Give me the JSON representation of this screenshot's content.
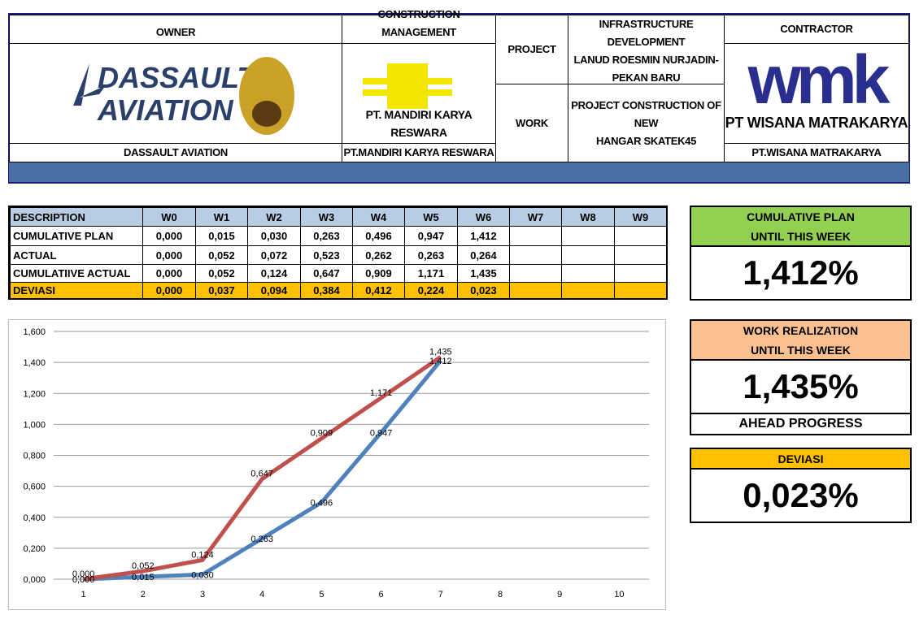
{
  "header": {
    "owner": {
      "title": "OWNER",
      "logo": [
        "DASSAULT",
        "AVIATION"
      ],
      "name": "DASSAULT AVIATION"
    },
    "construction_management": {
      "title": "CONSTRUCTION MANAGEMENT",
      "logo": "PT. MANDIRI KARYA RESWARA",
      "name": "PT.MANDIRI KARYA RESWARA"
    },
    "project": {
      "label": "PROJECT",
      "lines": [
        "INFRASTRUCTURE DEVELOPMENT",
        "LANUD ROESMIN NURJADIN-",
        "PEKAN BARU"
      ]
    },
    "work": {
      "label": "WORK",
      "lines": [
        "PROJECT CONSTRUCTION OF NEW",
        "HANGAR SKATEK45"
      ]
    },
    "contractor": {
      "title": "CONTRACTOR",
      "logo": "wmk",
      "logo_name": "PT WISANA MATRAKARYA",
      "name": "PT.WISANA MATRAKARYA"
    }
  },
  "table": {
    "columns": [
      "DESCRIPTION",
      "W0",
      "W1",
      "W2",
      "W3",
      "W4",
      "W5",
      "W6",
      "W7",
      "W8",
      "W9"
    ],
    "rows": [
      [
        "CUMULATIVE PLAN",
        "0,000",
        "0,015",
        "0,030",
        "0,263",
        "0,496",
        "0,947",
        "1,412"
      ],
      [
        "ACTUAL",
        "0,000",
        "0,052",
        "0,072",
        "0,523",
        "0,262",
        "0,263",
        "0,264"
      ],
      [
        "CUMULATIIVE ACTUAL",
        "0,000",
        "0,052",
        "0,124",
        "0,647",
        "0,909",
        "1,171",
        "1,435"
      ],
      [
        "DEVIASI",
        "0,000",
        "0,037",
        "0,094",
        "0,384",
        "0,412",
        "0,224",
        "0,023"
      ]
    ],
    "header_color": "#b8cce4",
    "highlight_row": 3,
    "highlight_color": "#ffc000"
  },
  "chart_data": {
    "type": "line",
    "categories": [
      "1",
      "2",
      "3",
      "4",
      "5",
      "6",
      "7",
      "8",
      "9",
      "10"
    ],
    "series": [
      {
        "color": "#4f81bd",
        "values": [
          0,
          0.015,
          0.03,
          0.263,
          0.496,
          0.947,
          1.412,
          null,
          null,
          null
        ],
        "value_labels": [
          "0,000",
          "0,015",
          "0,030",
          "0,263",
          "0,496",
          "0,947",
          "1,412",
          null,
          null,
          null
        ]
      },
      {
        "color": "#c0504d",
        "values": [
          0,
          0.052,
          0.124,
          0.647,
          0.909,
          1.171,
          1.435,
          null,
          null,
          null
        ],
        "value_labels": [
          "0,000",
          "0,052",
          "0,124",
          "0,647",
          "0,909",
          "1,171",
          "1,435",
          null,
          null,
          null
        ]
      }
    ],
    "ylim": [
      0,
      1.6
    ],
    "yticks": [
      {
        "value": 0,
        "label": "0,000"
      },
      {
        "value": 0.2,
        "label": "0,200"
      },
      {
        "value": 0.4,
        "label": "0,400"
      },
      {
        "value": 0.6,
        "label": "0,600"
      },
      {
        "value": 0.8,
        "label": "0,800"
      },
      {
        "value": 1,
        "label": "1,000"
      },
      {
        "value": 1.2,
        "label": "1,200"
      },
      {
        "value": 1.4,
        "label": "1,400"
      },
      {
        "value": 1.6,
        "label": "1,600"
      }
    ],
    "grid": true
  },
  "summary": [
    {
      "title": [
        "CUMULATIVE PLAN",
        "UNTIL THIS WEEK"
      ],
      "value": "1,412%",
      "color": "#92d050"
    },
    {
      "title": [
        "WORK REALIZATION",
        "UNTIL THIS WEEK"
      ],
      "value": "1,435%",
      "note": "AHEAD PROGRESS",
      "color": "#fac090"
    },
    {
      "title": [
        "DEVIASI"
      ],
      "value": "0,023%",
      "color": "#ffc000"
    }
  ]
}
